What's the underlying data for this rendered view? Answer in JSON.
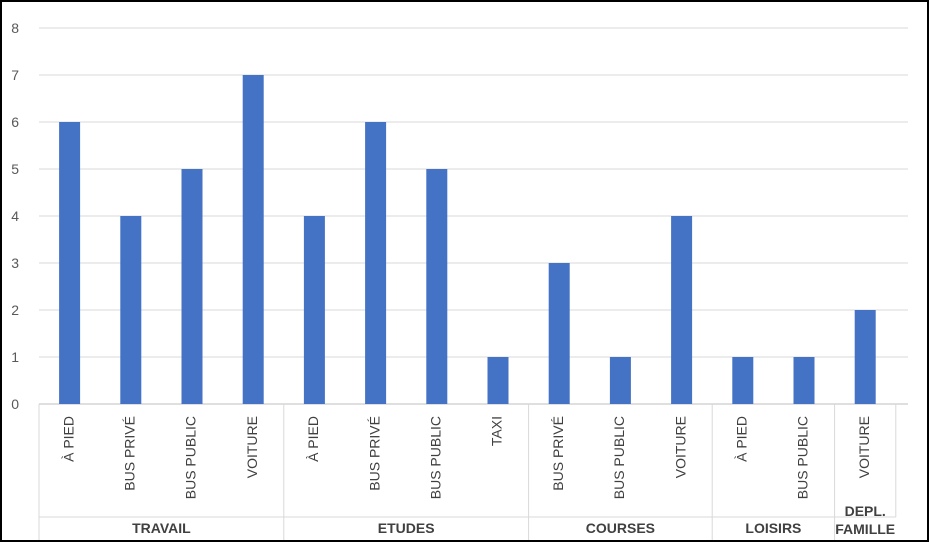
{
  "chart_data": {
    "type": "bar",
    "title": "",
    "xlabel": "",
    "ylabel": "",
    "ylim": [
      0,
      8
    ],
    "yticks": [
      0,
      1,
      2,
      3,
      4,
      5,
      6,
      7,
      8
    ],
    "grid": true,
    "legend": "none",
    "bar_color": "#4472C4",
    "groups": [
      {
        "label": "TRAVAIL",
        "categories": [
          "À PIED",
          "BUS PRIVÉ",
          "BUS PUBLIC",
          "VOITURE"
        ],
        "values": [
          6,
          4,
          5,
          7
        ]
      },
      {
        "label": "ETUDES",
        "categories": [
          "À PIED",
          "BUS PRIVÉ",
          "BUS PUBLIC",
          "TAXI"
        ],
        "values": [
          4,
          6,
          5,
          1
        ]
      },
      {
        "label": "COURSES",
        "categories": [
          "BUS PRIVÉ",
          "BUS PUBLIC",
          "VOITURE"
        ],
        "values": [
          3,
          1,
          4
        ]
      },
      {
        "label": "LOISIRS",
        "categories": [
          "À PIED",
          "BUS PUBLIC"
        ],
        "values": [
          1,
          1
        ]
      },
      {
        "label": "DEPL. FAMILLE",
        "categories": [
          "VOITURE"
        ],
        "values": [
          2
        ]
      }
    ]
  }
}
